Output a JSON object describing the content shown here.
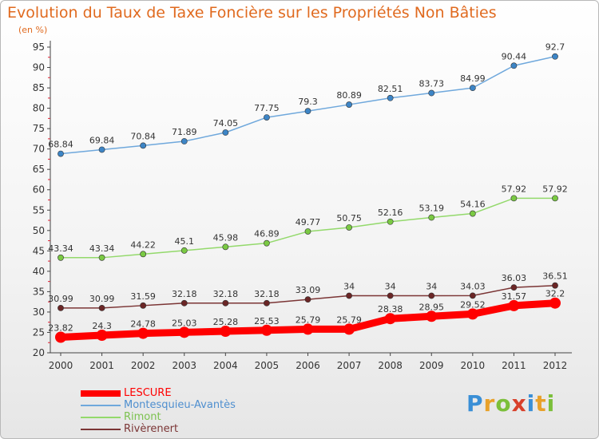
{
  "title": "Evolution du Taux de Taxe Foncière sur les Propriétés Non Bâties",
  "unit_label": "(en %)",
  "logo": {
    "letters": [
      "P",
      "r",
      "o",
      "x",
      "i",
      "t",
      "i"
    ],
    "colors": [
      "#3a8fd6",
      "#e8a12a",
      "#7bbf3a",
      "#d8402b",
      "#3a8fd6",
      "#e8a12a",
      "#7bbf3a"
    ]
  },
  "chart_data": {
    "type": "line",
    "x": [
      "2000",
      "2001",
      "2002",
      "2003",
      "2004",
      "2005",
      "2006",
      "2007",
      "2008",
      "2009",
      "2010",
      "2011",
      "2012"
    ],
    "ylim": [
      20,
      95
    ],
    "yticks": [
      20,
      25,
      30,
      35,
      40,
      45,
      50,
      55,
      60,
      65,
      70,
      75,
      80,
      85,
      90,
      95
    ],
    "grid": false,
    "legend_position": "bottom-left",
    "series": [
      {
        "name": "LESCURE",
        "color": "#ff0000",
        "width": 9,
        "values": [
          23.82,
          24.3,
          24.78,
          25.03,
          25.28,
          25.53,
          25.79,
          25.79,
          28.38,
          28.95,
          29.52,
          31.57,
          32.2
        ],
        "labels": [
          "23.82",
          "24.3",
          "24.78",
          "25.03",
          "25.28",
          "25.53",
          "25.79",
          "25.79",
          "28.38",
          "28.95",
          "29.52",
          "31.57",
          "32.2"
        ]
      },
      {
        "name": "Montesquieu-Avantès",
        "color": "#6fa8dc",
        "width": 1.5,
        "marker": "#3d85c6",
        "values": [
          68.84,
          69.84,
          70.84,
          71.89,
          74.05,
          77.75,
          79.3,
          80.89,
          82.51,
          83.73,
          84.99,
          90.44,
          92.7
        ],
        "labels": [
          "68.84",
          "69.84",
          "70.84",
          "71.89",
          "74.05",
          "77.75",
          "79.3",
          "80.89",
          "82.51",
          "83.73",
          "84.99",
          "90.44",
          "92.7"
        ]
      },
      {
        "name": "Rimont",
        "color": "#93d96b",
        "width": 1.5,
        "marker": "#7ac943",
        "values": [
          43.34,
          43.34,
          44.22,
          45.1,
          45.98,
          46.89,
          49.77,
          50.75,
          52.16,
          53.19,
          54.16,
          57.92,
          57.92
        ],
        "labels": [
          "43.34",
          "43.34",
          "44.22",
          "45.1",
          "45.98",
          "46.89",
          "49.77",
          "50.75",
          "52.16",
          "53.19",
          "54.16",
          "57.92",
          "57.92"
        ]
      },
      {
        "name": "Rivèrenert",
        "color": "#7b3535",
        "width": 1.5,
        "marker": "#6b2626",
        "values": [
          30.99,
          30.99,
          31.59,
          32.18,
          32.18,
          32.18,
          33.09,
          34,
          34,
          34,
          34.03,
          36.03,
          36.51
        ],
        "labels": [
          "30.99",
          "30.99",
          "31.59",
          "32.18",
          "32.18",
          "32.18",
          "33.09",
          "34",
          "34",
          "34",
          "34.03",
          "36.03",
          "36.51"
        ]
      }
    ]
  }
}
